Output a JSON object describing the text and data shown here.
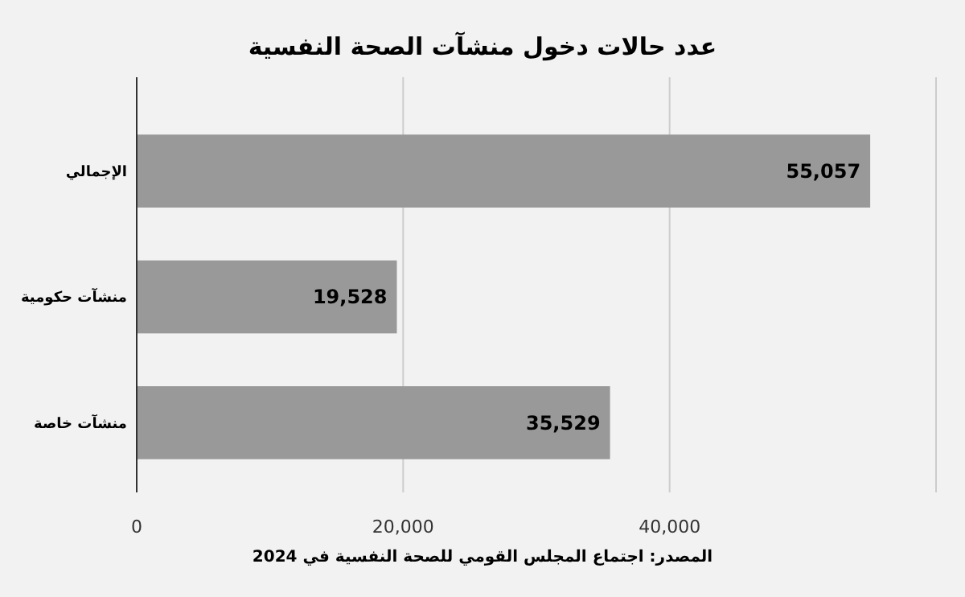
{
  "chart_data": {
    "type": "bar",
    "orientation": "horizontal",
    "title": "عدد حالات دخول منشآت الصحة النفسية",
    "categories": [
      "الإجمالي",
      "منشآت حكومية",
      "منشآت خاصة"
    ],
    "values": [
      55057,
      19528,
      35529
    ],
    "color": "#999999",
    "value_labels": [
      "55,057",
      "19,528",
      "35,529"
    ],
    "xlim": [
      0,
      60000
    ],
    "xticks": [
      0,
      {
        "value": 20000,
        "label": "20,000"
      },
      {
        "value": 40000,
        "label": "40,000"
      },
      {
        "value": 60000,
        "label": null
      }
    ],
    "grid": "x",
    "annotations": [
      "المصدر: اجتماع المجلس القومي للصحة النفسية في 2024"
    ]
  }
}
